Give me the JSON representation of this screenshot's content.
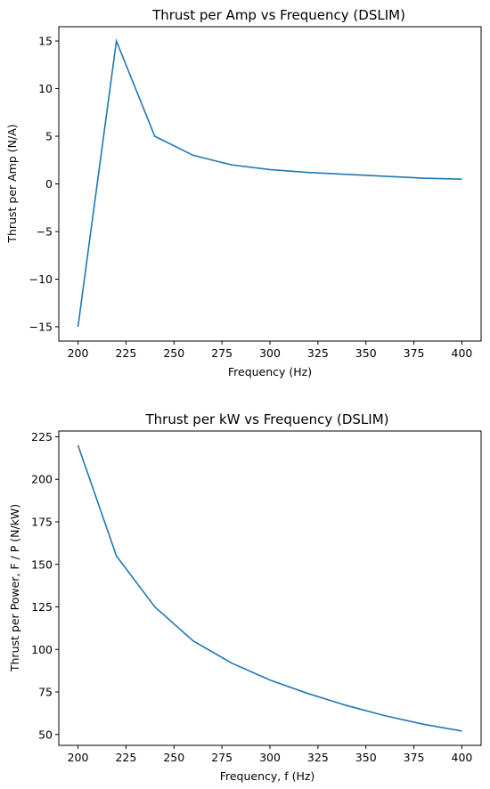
{
  "chart_data": [
    {
      "type": "line",
      "title": "Thrust per Amp vs Frequency (DSLIM)",
      "xlabel": "Frequency (Hz)",
      "ylabel": "Thrust per Amp (N/A)",
      "xlim": [
        190,
        410
      ],
      "ylim": [
        -16.5,
        16.5
      ],
      "xticks": [
        200,
        225,
        250,
        275,
        300,
        325,
        350,
        375,
        400
      ],
      "yticks": [
        -15,
        -10,
        -5,
        0,
        5,
        10,
        15
      ],
      "yticklabels": [
        "−15",
        "−10",
        "−5",
        "0",
        "5",
        "10",
        "15"
      ],
      "grid": false,
      "color": "#1f77b4",
      "series": [
        {
          "x": [
            200,
            220,
            240,
            260,
            280,
            300,
            320,
            340,
            360,
            380,
            400
          ],
          "y": [
            -15,
            15,
            5,
            3,
            2,
            1.5,
            1.2,
            1.0,
            0.8,
            0.6,
            0.5
          ]
        }
      ]
    },
    {
      "type": "line",
      "title": "Thrust per kW vs Frequency (DSLIM)",
      "xlabel": "Frequency, f (Hz)",
      "ylabel": "Thrust per Power, F / P (N/kW)",
      "xlim": [
        190,
        410
      ],
      "ylim": [
        43.6,
        228.4
      ],
      "xticks": [
        200,
        225,
        250,
        275,
        300,
        325,
        350,
        375,
        400
      ],
      "yticks": [
        50,
        75,
        100,
        125,
        150,
        175,
        200,
        225
      ],
      "yticklabels": [
        "50",
        "75",
        "100",
        "125",
        "150",
        "175",
        "200",
        "225"
      ],
      "grid": false,
      "color": "#1f77b4",
      "series": [
        {
          "x": [
            200,
            220,
            240,
            260,
            280,
            300,
            320,
            340,
            360,
            380,
            400
          ],
          "y": [
            220,
            155,
            125,
            105,
            92,
            82,
            74,
            67,
            61,
            56,
            52
          ]
        }
      ]
    }
  ]
}
